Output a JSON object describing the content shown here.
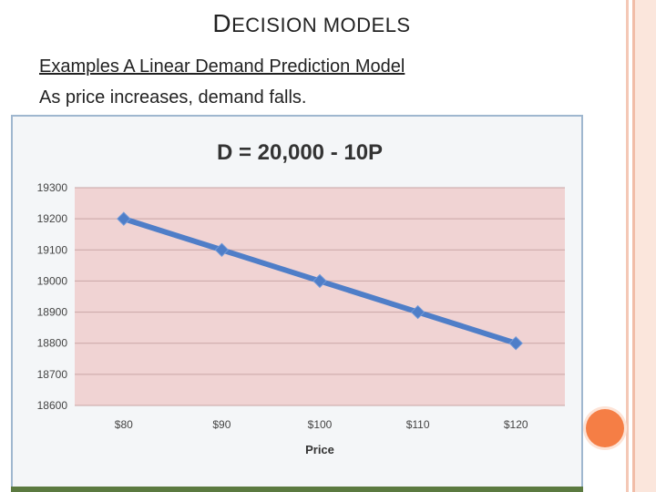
{
  "slide": {
    "title": "Decision models",
    "line1": "Examples  A Linear Demand Prediction Model",
    "line2": "As price increases, demand falls."
  },
  "colors": {
    "plot_background": "#f0d3d3",
    "series_line": "#4f7ec8",
    "accent_circle": "#f57e45",
    "frame_border": "#9fb7cf"
  },
  "chart_data": {
    "type": "line",
    "title": "D = 20,000 - 10P",
    "xlabel": "Price",
    "ylabel": "",
    "categories": [
      "$80",
      "$90",
      "$100",
      "$110",
      "$120"
    ],
    "series": [
      {
        "values": [
          19200,
          19100,
          19000,
          18900,
          18800
        ]
      }
    ],
    "ylim": [
      18600,
      19300
    ],
    "yticks": [
      19300,
      19200,
      19100,
      19000,
      18900,
      18800,
      18700,
      18600
    ],
    "grid": true,
    "legend": "none"
  }
}
